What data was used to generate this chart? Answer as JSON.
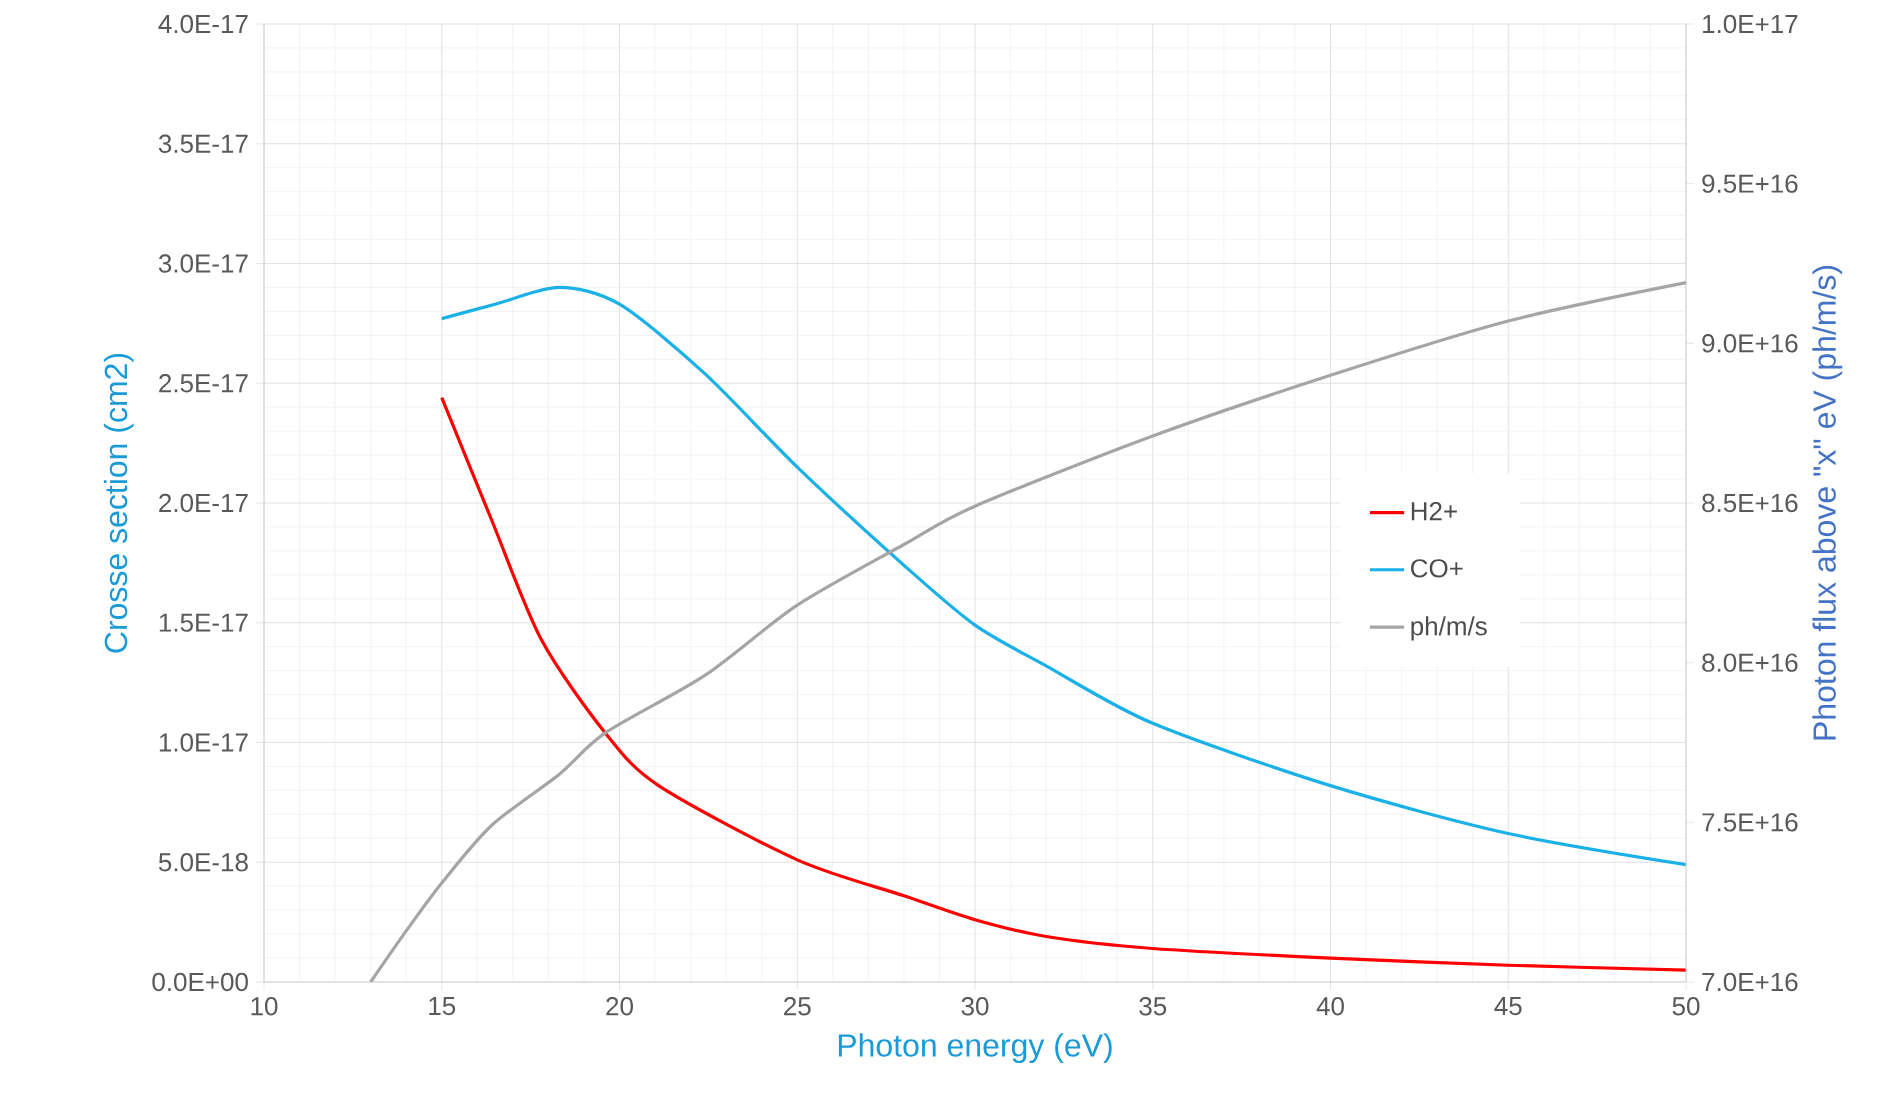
{
  "chart_data": {
    "type": "line",
    "xlabel": "Photon energy (eV)",
    "ylabel": "Crosse section (cm2)",
    "y2label": "Photon flux above \"x\" eV (ph/m/s)",
    "xlim": [
      10,
      50
    ],
    "xticks": [
      10,
      15,
      20,
      25,
      30,
      35,
      40,
      45,
      50
    ],
    "ylim": [
      0,
      4e-17
    ],
    "yticks": [
      {
        "value": 0,
        "label": "0.0E+00"
      },
      {
        "value": 5e-18,
        "label": "5.0E-18"
      },
      {
        "value": 1e-17,
        "label": "1.0E-17"
      },
      {
        "value": 1.5e-17,
        "label": "1.5E-17"
      },
      {
        "value": 2e-17,
        "label": "2.0E-17"
      },
      {
        "value": 2.5e-17,
        "label": "2.5E-17"
      },
      {
        "value": 3e-17,
        "label": "3.0E-17"
      },
      {
        "value": 3.5e-17,
        "label": "3.5E-17"
      },
      {
        "value": 4e-17,
        "label": "4.0E-17"
      }
    ],
    "y2lim": [
      7e+16,
      1e+17
    ],
    "y2ticks": [
      {
        "value": 7e+16,
        "label": "7.0E+16"
      },
      {
        "value": 7.5e+16,
        "label": "7.5E+16"
      },
      {
        "value": 8e+16,
        "label": "8.0E+16"
      },
      {
        "value": 8.5e+16,
        "label": "8.5E+16"
      },
      {
        "value": 9e+16,
        "label": "9.0E+16"
      },
      {
        "value": 9.5e+16,
        "label": "9.5E+16"
      },
      {
        "value": 1e+17,
        "label": "1.0E+17"
      }
    ],
    "grid": true,
    "legend": "right",
    "series": [
      {
        "name": "H2+",
        "color": "#ff0000",
        "x": [
          15,
          16.4,
          17.8,
          19.6,
          21.1,
          25,
          28,
          30,
          32,
          35,
          40,
          45,
          50
        ],
        "values": [
          2.44e-17,
          1.93e-17,
          1.43e-17,
          1.04e-17,
          8.2e-18,
          5.1e-18,
          3.6e-18,
          2.6e-18,
          1.9e-18,
          1.4e-18,
          1e-18,
          7e-19,
          5e-19
        ]
      },
      {
        "name": "CO+",
        "color": "#1ab0e8",
        "x": [
          15,
          16.5,
          18.3,
          20,
          22.4,
          25,
          28,
          30,
          32,
          35,
          40,
          45,
          50
        ],
        "values": [
          2.77e-17,
          2.83e-17,
          2.9e-17,
          2.83e-17,
          2.54e-17,
          2.15e-17,
          1.74e-17,
          1.49e-17,
          1.32e-17,
          1.08e-17,
          8.2e-18,
          6.2e-18,
          4.9e-18
        ]
      },
      {
        "name": "ph/m/s",
        "color": "#a5a5a5",
        "axis": "y2",
        "x": [
          13,
          14,
          15,
          16.4,
          18.3,
          19.6,
          22.4,
          25,
          28,
          30,
          35,
          40,
          45,
          50
        ],
        "values": [
          7e+16,
          7.16e+16,
          7.31e+16,
          7.49e+16,
          7.65e+16,
          7.78e+16,
          7.96e+16,
          8.18e+16,
          8.37e+16,
          8.49e+16,
          8.71e+16,
          8.9e+16,
          9.07e+16,
          9.19e+16
        ]
      }
    ]
  }
}
